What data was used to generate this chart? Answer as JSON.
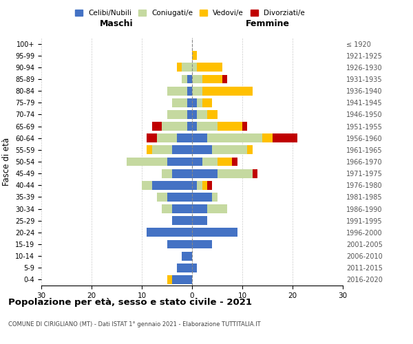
{
  "age_groups": [
    "0-4",
    "5-9",
    "10-14",
    "15-19",
    "20-24",
    "25-29",
    "30-34",
    "35-39",
    "40-44",
    "45-49",
    "50-54",
    "55-59",
    "60-64",
    "65-69",
    "70-74",
    "75-79",
    "80-84",
    "85-89",
    "90-94",
    "95-99",
    "100+"
  ],
  "birth_years": [
    "2016-2020",
    "2011-2015",
    "2006-2010",
    "2001-2005",
    "1996-2000",
    "1991-1995",
    "1986-1990",
    "1981-1985",
    "1976-1980",
    "1971-1975",
    "1966-1970",
    "1961-1965",
    "1956-1960",
    "1951-1955",
    "1946-1950",
    "1941-1945",
    "1936-1940",
    "1931-1935",
    "1926-1930",
    "1921-1925",
    "≤ 1920"
  ],
  "colors": {
    "celibi": "#4472c4",
    "coniugati": "#c5d9a0",
    "vedovi": "#ffc000",
    "divorziati": "#c00000"
  },
  "male": {
    "celibi": [
      4,
      3,
      2,
      5,
      9,
      4,
      4,
      5,
      8,
      4,
      5,
      4,
      3,
      1,
      1,
      1,
      1,
      1,
      0,
      0,
      0
    ],
    "coniugati": [
      0,
      0,
      0,
      0,
      0,
      0,
      2,
      2,
      2,
      2,
      8,
      4,
      4,
      5,
      4,
      3,
      4,
      1,
      2,
      0,
      0
    ],
    "vedovi": [
      1,
      0,
      0,
      0,
      0,
      0,
      0,
      0,
      0,
      0,
      0,
      1,
      0,
      0,
      0,
      0,
      0,
      0,
      1,
      0,
      0
    ],
    "divorziati": [
      0,
      0,
      0,
      0,
      0,
      0,
      0,
      0,
      0,
      0,
      0,
      0,
      2,
      2,
      0,
      0,
      0,
      0,
      0,
      0,
      0
    ]
  },
  "female": {
    "nubili": [
      0,
      1,
      0,
      4,
      9,
      3,
      3,
      4,
      1,
      5,
      2,
      4,
      3,
      1,
      1,
      1,
      0,
      0,
      0,
      0,
      0
    ],
    "coniugate": [
      0,
      0,
      0,
      0,
      0,
      0,
      4,
      1,
      1,
      7,
      3,
      7,
      11,
      4,
      2,
      1,
      2,
      2,
      1,
      0,
      0
    ],
    "vedove": [
      0,
      0,
      0,
      0,
      0,
      0,
      0,
      0,
      1,
      0,
      3,
      1,
      2,
      5,
      2,
      2,
      10,
      4,
      5,
      1,
      0
    ],
    "divorziate": [
      0,
      0,
      0,
      0,
      0,
      0,
      0,
      0,
      1,
      1,
      1,
      0,
      5,
      1,
      0,
      0,
      0,
      1,
      0,
      0,
      0
    ]
  },
  "xlim": 30,
  "title": "Popolazione per età, sesso e stato civile - 2021",
  "subtitle": "COMUNE DI CIRIGLIANO (MT) - Dati ISTAT 1° gennaio 2021 - Elaborazione TUTTITALIA.IT",
  "ylabel": "Fasce di età",
  "legend_labels": [
    "Celibi/Nubili",
    "Coniugati/e",
    "Vedovi/e",
    "Divorziati/e"
  ],
  "background_color": "#ffffff",
  "grid_color": "#cccccc"
}
